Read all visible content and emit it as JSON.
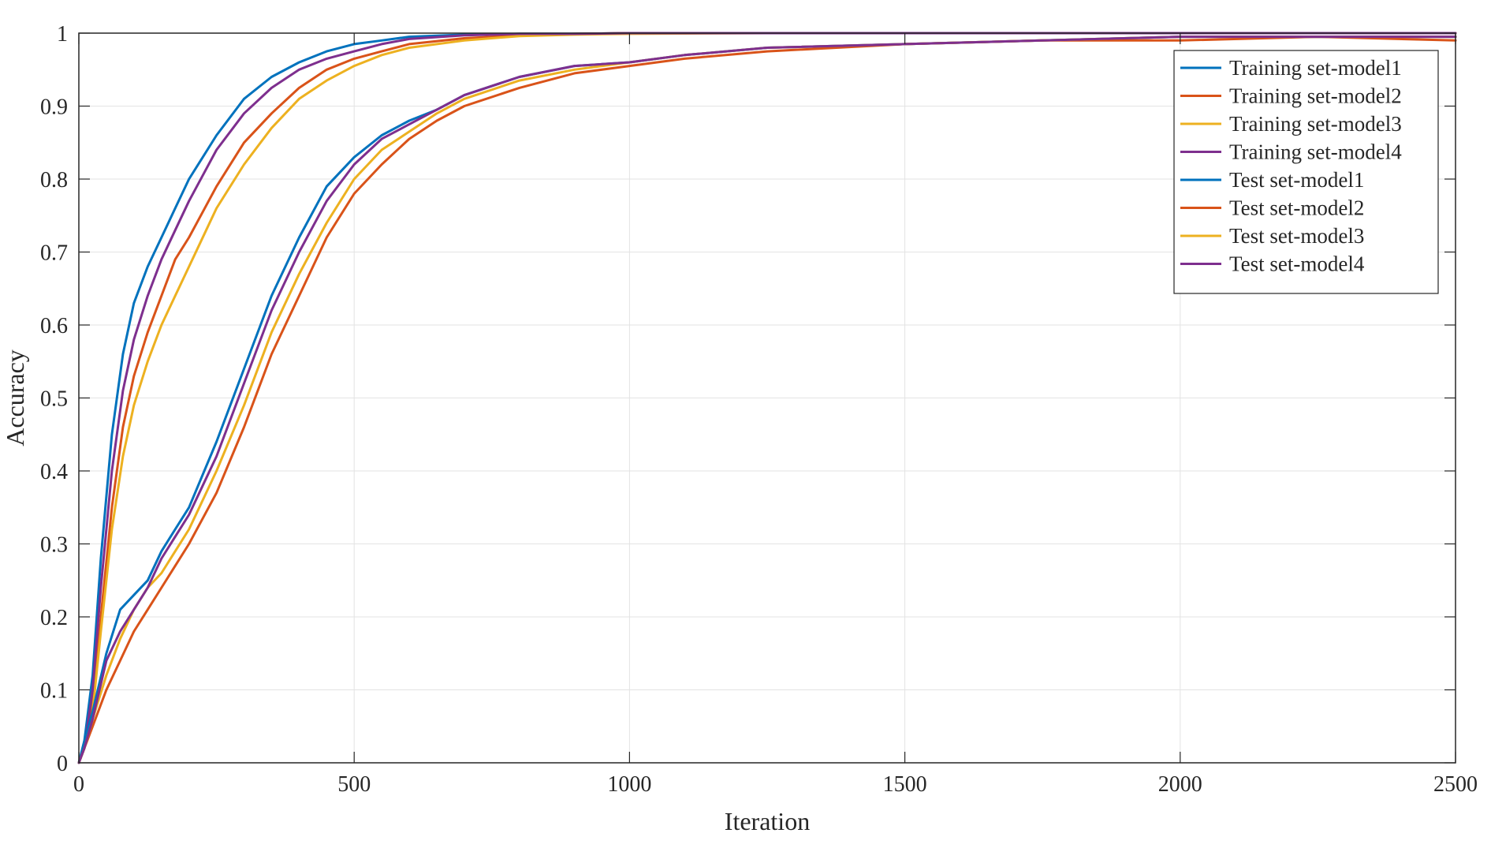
{
  "chart_data": {
    "type": "line",
    "title": "",
    "xlabel": "Iteration",
    "ylabel": "Accuracy",
    "xlim": [
      0,
      2500
    ],
    "ylim": [
      0,
      1
    ],
    "xticks": [
      0,
      500,
      1000,
      1500,
      2000,
      2500
    ],
    "yticks": [
      0,
      0.1,
      0.2,
      0.3,
      0.4,
      0.5,
      0.6,
      0.7,
      0.8,
      0.9,
      1
    ],
    "ytick_labels": [
      "0",
      "0.1",
      "0.2",
      "0.3",
      "0.4",
      "0.5",
      "0.6",
      "0.7",
      "0.8",
      "0.9",
      "1"
    ],
    "grid": true,
    "legend_position": "top-right",
    "series": [
      {
        "name": "Training set-model1",
        "color": "#0072BD",
        "x": [
          0,
          10,
          25,
          40,
          60,
          80,
          100,
          125,
          150,
          175,
          200,
          250,
          300,
          350,
          400,
          450,
          500,
          550,
          600,
          700,
          800,
          900,
          1000,
          1250,
          1500,
          1750,
          2000,
          2250,
          2500
        ],
        "y": [
          0,
          0.03,
          0.12,
          0.28,
          0.45,
          0.56,
          0.63,
          0.68,
          0.72,
          0.76,
          0.8,
          0.86,
          0.91,
          0.94,
          0.96,
          0.975,
          0.985,
          0.99,
          0.995,
          0.998,
          0.999,
          0.999,
          1,
          1,
          1,
          1,
          1,
          1,
          1
        ]
      },
      {
        "name": "Training set-model2",
        "color": "#D95319",
        "x": [
          0,
          10,
          25,
          40,
          60,
          80,
          100,
          125,
          150,
          175,
          200,
          250,
          300,
          350,
          400,
          450,
          500,
          550,
          600,
          700,
          800,
          900,
          1000,
          1250,
          1500,
          1750,
          2000,
          2250,
          2500
        ],
        "y": [
          0,
          0.02,
          0.08,
          0.2,
          0.35,
          0.46,
          0.53,
          0.59,
          0.64,
          0.69,
          0.72,
          0.79,
          0.85,
          0.89,
          0.925,
          0.95,
          0.965,
          0.975,
          0.985,
          0.993,
          0.997,
          0.999,
          1,
          1,
          1,
          1,
          1,
          1,
          1
        ]
      },
      {
        "name": "Training set-model3",
        "color": "#EDB120",
        "x": [
          0,
          10,
          25,
          40,
          60,
          80,
          100,
          125,
          150,
          175,
          200,
          250,
          300,
          350,
          400,
          450,
          500,
          550,
          600,
          700,
          800,
          900,
          1000,
          1250,
          1500,
          1750,
          2000,
          2250,
          2500
        ],
        "y": [
          0,
          0.02,
          0.07,
          0.18,
          0.32,
          0.42,
          0.49,
          0.55,
          0.6,
          0.64,
          0.68,
          0.76,
          0.82,
          0.87,
          0.91,
          0.935,
          0.955,
          0.97,
          0.98,
          0.99,
          0.996,
          0.998,
          0.999,
          1,
          1,
          1,
          1,
          1,
          1
        ]
      },
      {
        "name": "Training set-model4",
        "color": "#7E2F8E",
        "x": [
          0,
          10,
          25,
          40,
          60,
          80,
          100,
          125,
          150,
          175,
          200,
          250,
          300,
          350,
          400,
          450,
          500,
          550,
          600,
          700,
          800,
          900,
          1000,
          1250,
          1500,
          1750,
          2000,
          2250,
          2500
        ],
        "y": [
          0,
          0.02,
          0.1,
          0.24,
          0.4,
          0.51,
          0.58,
          0.64,
          0.69,
          0.73,
          0.77,
          0.84,
          0.89,
          0.925,
          0.95,
          0.965,
          0.975,
          0.985,
          0.992,
          0.997,
          0.999,
          0.999,
          1,
          1,
          1,
          1,
          1,
          1,
          1
        ]
      },
      {
        "name": "Test set-model1",
        "color": "#0072BD",
        "x": [
          0,
          10,
          25,
          50,
          75,
          100,
          125,
          150,
          175,
          200,
          250,
          300,
          350,
          400,
          450,
          500,
          550,
          600,
          650,
          700,
          800,
          900,
          1000,
          1100,
          1250,
          1500,
          1750,
          2000,
          2250,
          2500
        ],
        "y": [
          0,
          0.03,
          0.07,
          0.15,
          0.21,
          0.23,
          0.25,
          0.29,
          0.32,
          0.35,
          0.44,
          0.54,
          0.64,
          0.72,
          0.79,
          0.83,
          0.86,
          0.88,
          0.895,
          0.915,
          0.94,
          0.955,
          0.96,
          0.97,
          0.98,
          0.985,
          0.99,
          0.995,
          0.995,
          0.995
        ]
      },
      {
        "name": "Test set-model2",
        "color": "#D95319",
        "x": [
          0,
          10,
          25,
          50,
          75,
          100,
          125,
          150,
          175,
          200,
          250,
          300,
          350,
          400,
          450,
          500,
          550,
          600,
          650,
          700,
          800,
          900,
          1000,
          1100,
          1250,
          1500,
          1750,
          2000,
          2250,
          2500
        ],
        "y": [
          0,
          0.02,
          0.05,
          0.1,
          0.14,
          0.18,
          0.21,
          0.24,
          0.27,
          0.3,
          0.37,
          0.46,
          0.56,
          0.64,
          0.72,
          0.78,
          0.82,
          0.855,
          0.88,
          0.9,
          0.925,
          0.945,
          0.955,
          0.965,
          0.975,
          0.985,
          0.99,
          0.99,
          0.995,
          0.99
        ]
      },
      {
        "name": "Test set-model3",
        "color": "#EDB120",
        "x": [
          0,
          10,
          25,
          50,
          75,
          100,
          125,
          150,
          175,
          200,
          250,
          300,
          350,
          400,
          450,
          500,
          550,
          600,
          650,
          700,
          800,
          900,
          1000,
          1100,
          1250,
          1500,
          1750,
          2000,
          2250,
          2500
        ],
        "y": [
          0,
          0.02,
          0.06,
          0.12,
          0.17,
          0.21,
          0.24,
          0.26,
          0.29,
          0.32,
          0.4,
          0.49,
          0.59,
          0.67,
          0.74,
          0.8,
          0.84,
          0.865,
          0.89,
          0.91,
          0.935,
          0.95,
          0.96,
          0.97,
          0.98,
          0.985,
          0.99,
          0.995,
          0.995,
          0.995
        ]
      },
      {
        "name": "Test set-model4",
        "color": "#7E2F8E",
        "x": [
          0,
          10,
          25,
          50,
          75,
          100,
          125,
          150,
          175,
          200,
          250,
          300,
          350,
          400,
          450,
          500,
          550,
          600,
          650,
          700,
          800,
          900,
          1000,
          1100,
          1250,
          1500,
          1750,
          2000,
          2250,
          2500
        ],
        "y": [
          0,
          0.02,
          0.06,
          0.14,
          0.18,
          0.21,
          0.24,
          0.28,
          0.31,
          0.34,
          0.42,
          0.52,
          0.62,
          0.7,
          0.77,
          0.82,
          0.855,
          0.875,
          0.895,
          0.915,
          0.94,
          0.955,
          0.96,
          0.97,
          0.98,
          0.985,
          0.99,
          0.995,
          0.995,
          0.995
        ]
      }
    ]
  }
}
